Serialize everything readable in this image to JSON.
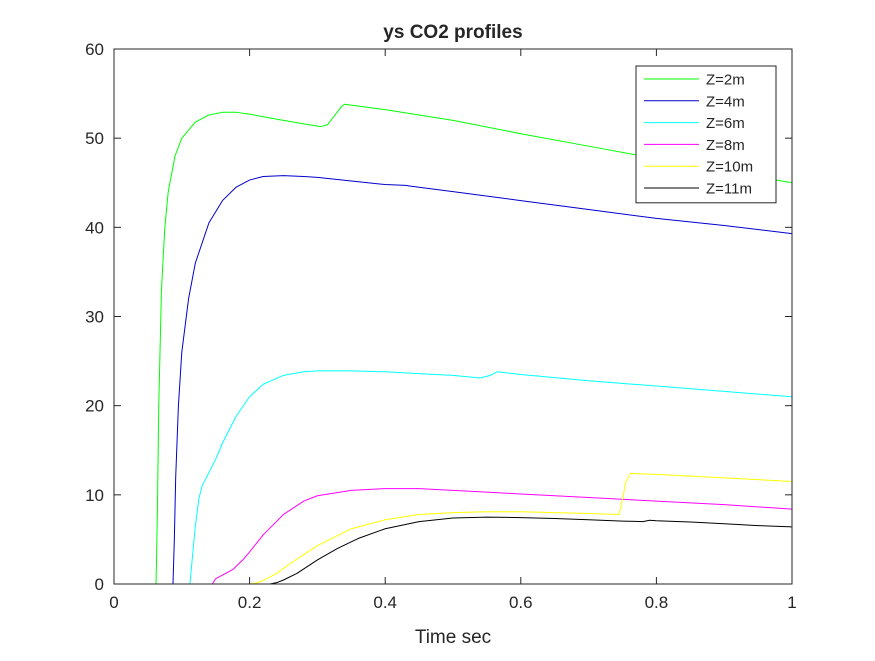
{
  "chart_data": {
    "type": "line",
    "title": "ys CO2 profiles",
    "xlabel": "Time sec",
    "ylabel": "",
    "xlim": [
      0,
      1
    ],
    "ylim": [
      0,
      60
    ],
    "xticks": [
      0,
      0.2,
      0.4,
      0.6,
      0.8,
      1
    ],
    "xtick_labels": [
      "0",
      "0.2",
      "0.4",
      "0.6",
      "0.8",
      "1"
    ],
    "yticks": [
      0,
      10,
      20,
      30,
      40,
      50,
      60
    ],
    "ytick_labels": [
      "0",
      "10",
      "20",
      "30",
      "40",
      "50",
      "60"
    ],
    "grid": false,
    "legend_position": "top-right",
    "series": [
      {
        "name": "Z=2m",
        "color": "#00ff00",
        "x": [
          0,
          0.062,
          0.064,
          0.066,
          0.07,
          0.075,
          0.08,
          0.09,
          0.1,
          0.12,
          0.14,
          0.16,
          0.18,
          0.2,
          0.22,
          0.25,
          0.28,
          0.305,
          0.315,
          0.325,
          0.335,
          0.34,
          0.35,
          0.4,
          0.5,
          0.6,
          0.7,
          0.8,
          0.9,
          1.0
        ],
        "y": [
          0,
          0,
          8,
          20,
          33,
          40,
          44,
          48,
          50,
          51.8,
          52.6,
          52.9,
          52.9,
          52.7,
          52.4,
          52.0,
          51.6,
          51.3,
          51.5,
          52.5,
          53.5,
          53.8,
          53.7,
          53.2,
          52.0,
          50.5,
          49.1,
          47.7,
          46.3,
          45.0
        ]
      },
      {
        "name": "Z=4m",
        "color": "#0000cc",
        "x": [
          0,
          0.087,
          0.089,
          0.091,
          0.095,
          0.1,
          0.11,
          0.12,
          0.14,
          0.16,
          0.18,
          0.2,
          0.22,
          0.25,
          0.28,
          0.3,
          0.35,
          0.4,
          0.43,
          0.44,
          0.5,
          0.6,
          0.7,
          0.8,
          0.9,
          1.0
        ],
        "y": [
          0,
          0,
          5,
          12,
          20,
          26,
          32,
          36,
          40.5,
          43,
          44.5,
          45.3,
          45.7,
          45.8,
          45.7,
          45.6,
          45.2,
          44.8,
          44.7,
          44.6,
          44.0,
          43.0,
          42.0,
          41.0,
          40.2,
          39.3
        ]
      },
      {
        "name": "Z=6m",
        "color": "#00ffff",
        "x": [
          0,
          0.112,
          0.115,
          0.12,
          0.125,
          0.13,
          0.14,
          0.15,
          0.16,
          0.18,
          0.2,
          0.22,
          0.25,
          0.28,
          0.3,
          0.35,
          0.4,
          0.45,
          0.5,
          0.54,
          0.555,
          0.565,
          0.6,
          0.7,
          0.8,
          0.9,
          1.0
        ],
        "y": [
          0,
          0,
          2.5,
          6.5,
          9.5,
          11,
          12.5,
          14,
          15.8,
          18.8,
          21,
          22.4,
          23.4,
          23.8,
          23.9,
          23.9,
          23.8,
          23.6,
          23.4,
          23.1,
          23.4,
          23.8,
          23.5,
          22.8,
          22.2,
          21.6,
          21.0
        ]
      },
      {
        "name": "Z=8m",
        "color": "#ff00ff",
        "x": [
          0,
          0.145,
          0.15,
          0.16,
          0.175,
          0.19,
          0.2,
          0.22,
          0.25,
          0.28,
          0.3,
          0.35,
          0.4,
          0.45,
          0.5,
          0.55,
          0.6,
          0.7,
          0.8,
          0.9,
          1.0
        ],
        "y": [
          0,
          0,
          0.6,
          1.0,
          1.6,
          2.7,
          3.6,
          5.5,
          7.8,
          9.3,
          9.9,
          10.5,
          10.7,
          10.7,
          10.5,
          10.3,
          10.1,
          9.7,
          9.3,
          8.9,
          8.4
        ]
      },
      {
        "name": "Z=10m",
        "color": "#ffff00",
        "x": [
          0,
          0.2,
          0.21,
          0.22,
          0.24,
          0.26,
          0.28,
          0.3,
          0.35,
          0.4,
          0.45,
          0.5,
          0.55,
          0.6,
          0.65,
          0.7,
          0.745,
          0.75,
          0.755,
          0.762,
          0.8,
          0.9,
          1.0
        ],
        "y": [
          0,
          0,
          0.1,
          0.4,
          1.2,
          2.3,
          3.3,
          4.3,
          6.2,
          7.2,
          7.8,
          8.0,
          8.1,
          8.1,
          8.0,
          7.9,
          7.8,
          9.5,
          11.5,
          12.4,
          12.3,
          11.9,
          11.5
        ]
      },
      {
        "name": "Z=11m",
        "color": "#000000",
        "x": [
          0,
          0.23,
          0.24,
          0.25,
          0.27,
          0.3,
          0.33,
          0.36,
          0.4,
          0.45,
          0.5,
          0.55,
          0.6,
          0.65,
          0.7,
          0.75,
          0.78,
          0.79,
          0.8,
          0.85,
          0.9,
          0.95,
          1.0
        ],
        "y": [
          0,
          0,
          0.15,
          0.45,
          1.2,
          2.7,
          4.0,
          5.1,
          6.2,
          7.0,
          7.4,
          7.5,
          7.45,
          7.35,
          7.2,
          7.05,
          7.0,
          7.15,
          7.1,
          6.95,
          6.75,
          6.55,
          6.4
        ]
      }
    ]
  }
}
